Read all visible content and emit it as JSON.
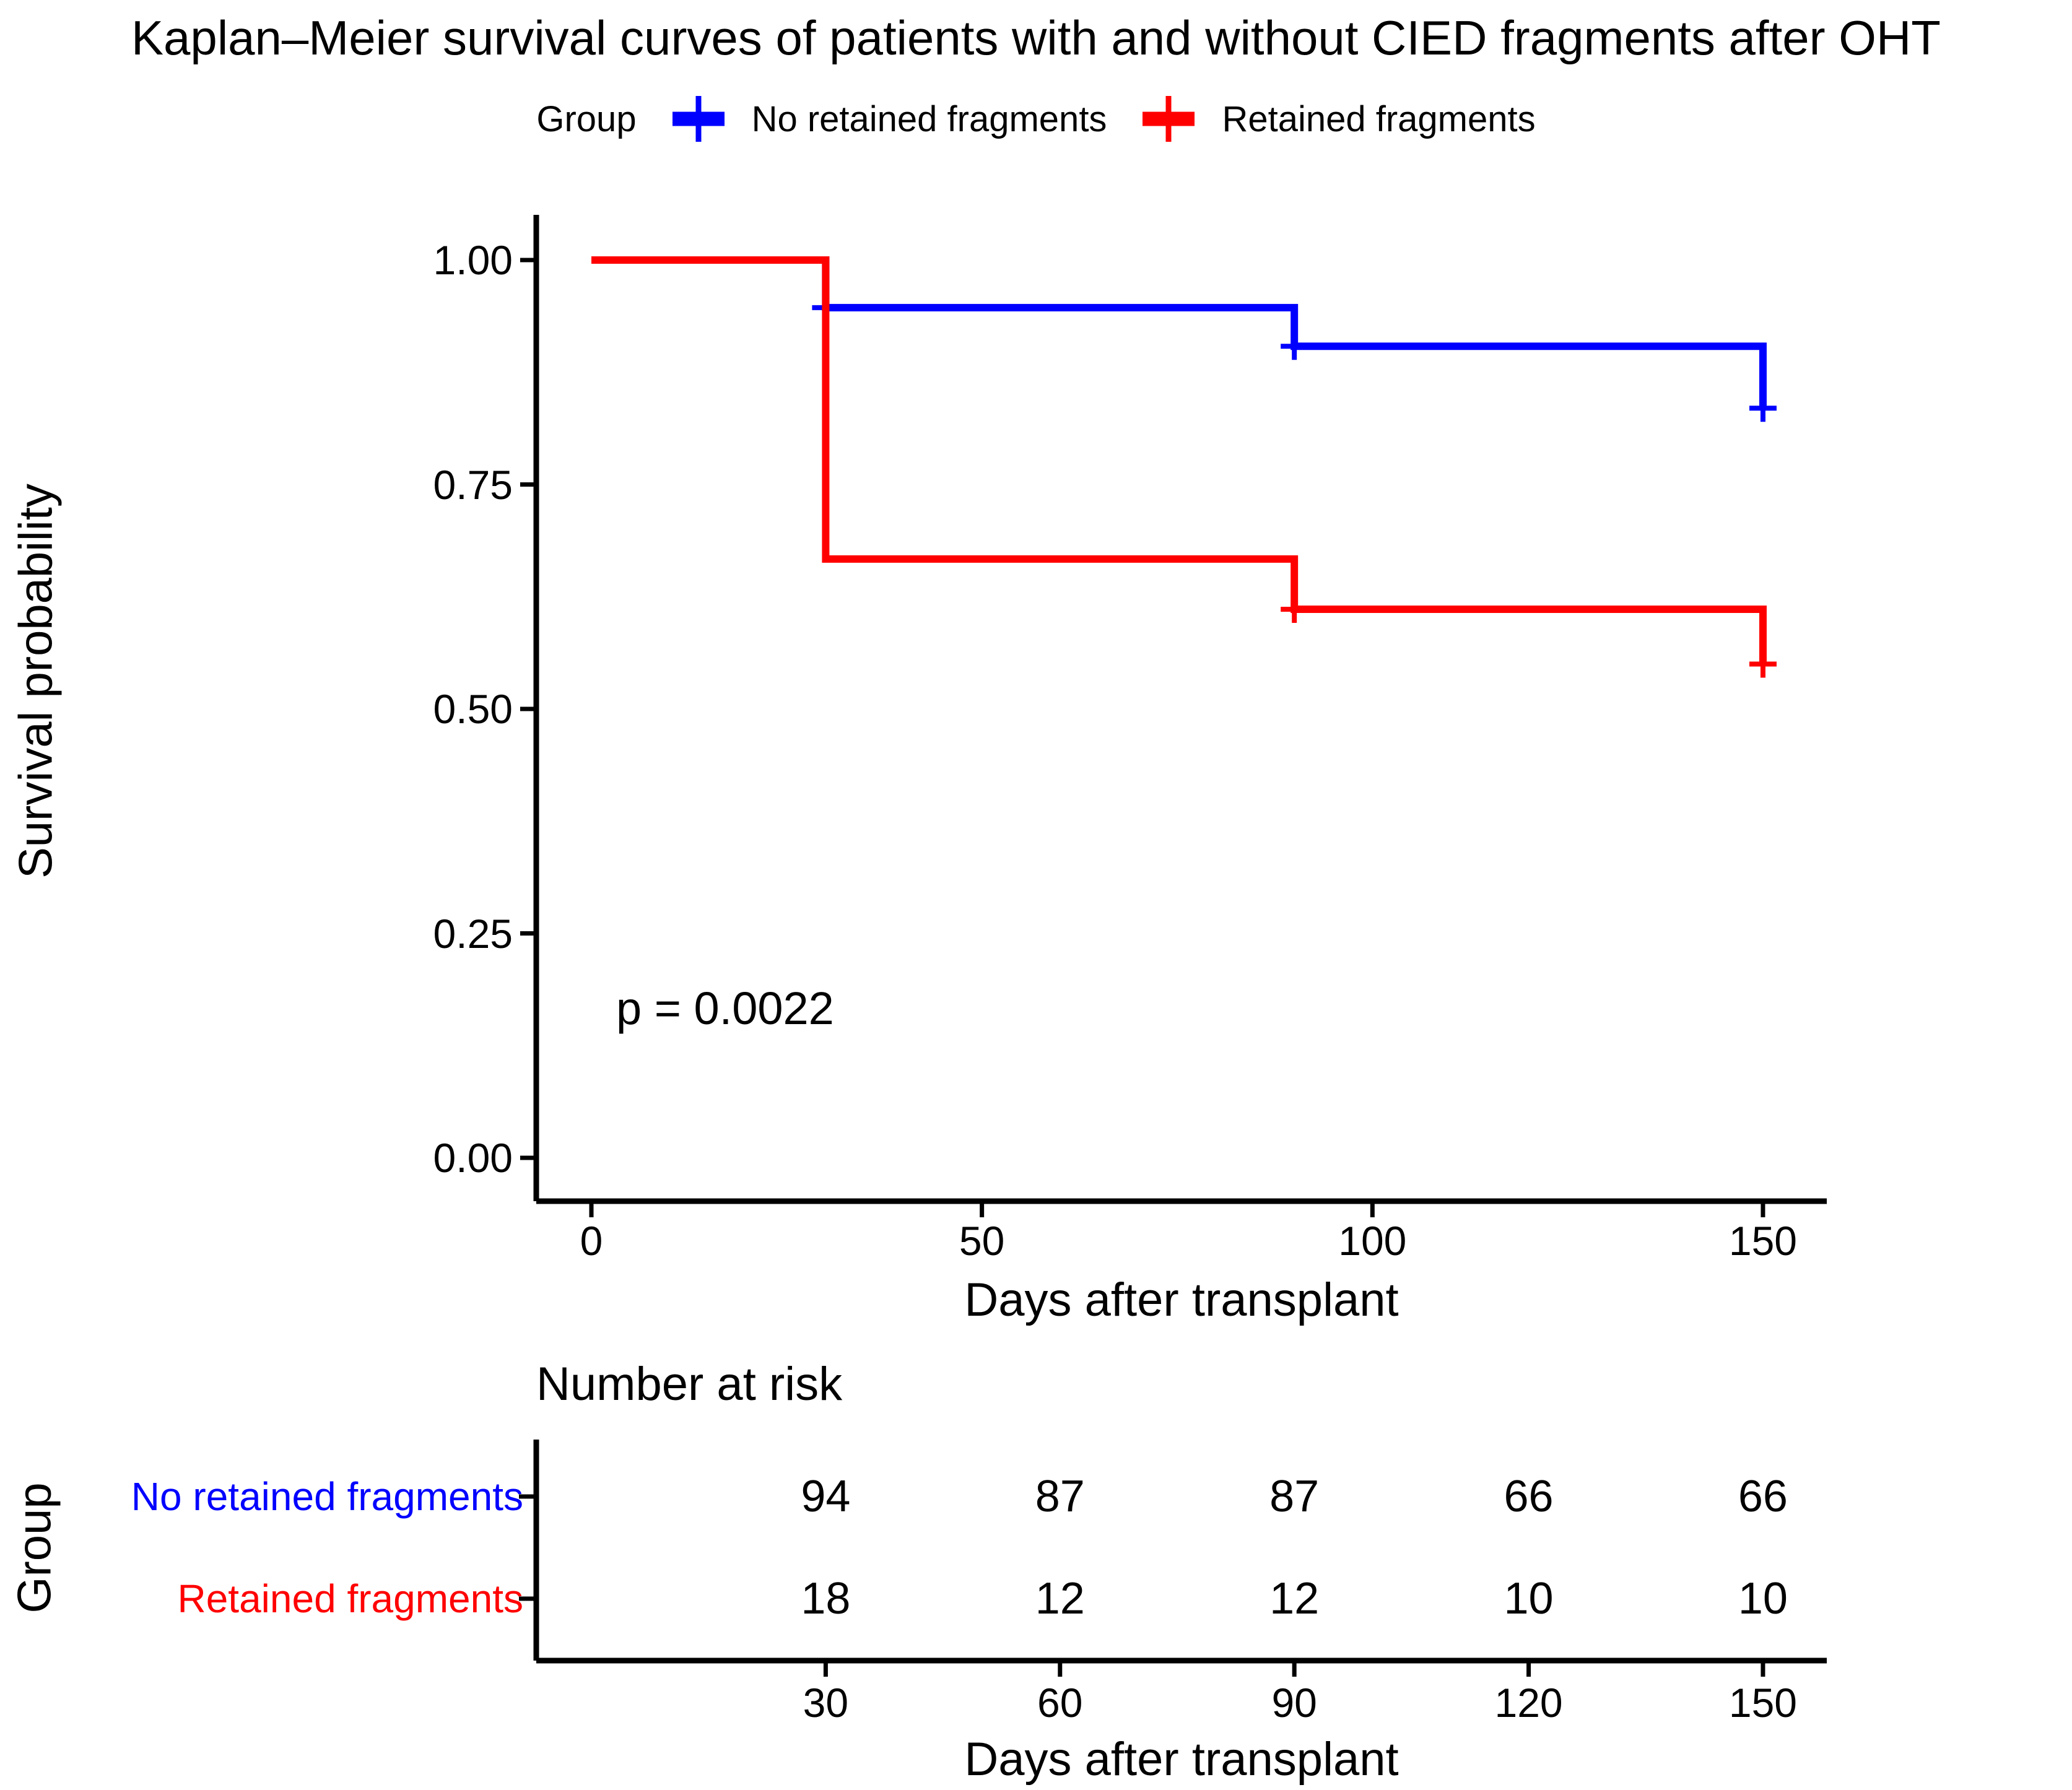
{
  "chart_data": {
    "type": "line",
    "subtype": "kaplan-meier-step",
    "title": "Kaplan–Meier survival curves of patients with and without CIED fragments after OHT",
    "legend_title": "Group",
    "xlabel": "Days after transplant",
    "ylabel": "Survival probability",
    "pvalue": "p = 0.0022",
    "xlim": [
      0,
      158
    ],
    "ylim": [
      0,
      1
    ],
    "x_tick_values": [
      0,
      50,
      100,
      150
    ],
    "x_tick_labels": [
      "0",
      "50",
      "100",
      "150"
    ],
    "y_tick_values": [
      1.0,
      0.75,
      0.5,
      0.25,
      0.0
    ],
    "y_tick_labels": [
      "1.00",
      "0.75",
      "0.50",
      "0.25",
      "0.00"
    ],
    "grid": "off",
    "legend_position": "top-center",
    "series": [
      {
        "name": "No retained fragments",
        "color": "#0000ff",
        "steps": [
          [
            0,
            1.0
          ],
          [
            30,
            1.0
          ],
          [
            30,
            0.947
          ],
          [
            90,
            0.947
          ],
          [
            90,
            0.904
          ],
          [
            150,
            0.904
          ],
          [
            150,
            0.835
          ]
        ],
        "censors": [
          [
            30,
            0.947
          ],
          [
            90,
            0.904
          ],
          [
            150,
            0.835
          ]
        ]
      },
      {
        "name": "Retained fragments",
        "color": "#ff0000",
        "steps": [
          [
            0,
            1.0
          ],
          [
            30,
            1.0
          ],
          [
            30,
            0.667
          ],
          [
            90,
            0.667
          ],
          [
            90,
            0.611
          ],
          [
            150,
            0.611
          ],
          [
            150,
            0.55
          ]
        ],
        "censors": [
          [
            90,
            0.611
          ],
          [
            150,
            0.55
          ]
        ]
      }
    ],
    "risk_table": {
      "title": "Number at risk",
      "group_label": "Group",
      "xlabel": "Days after transplant",
      "time_points": [
        30,
        60,
        90,
        120,
        150
      ],
      "time_labels": [
        "30",
        "60",
        "90",
        "120",
        "150"
      ],
      "rows": [
        {
          "name": "No retained fragments",
          "color": "#0000ff",
          "values": [
            94,
            87,
            87,
            66,
            66
          ]
        },
        {
          "name": "Retained fragments",
          "color": "#ff0000",
          "values": [
            18,
            12,
            12,
            10,
            10
          ]
        }
      ]
    }
  }
}
